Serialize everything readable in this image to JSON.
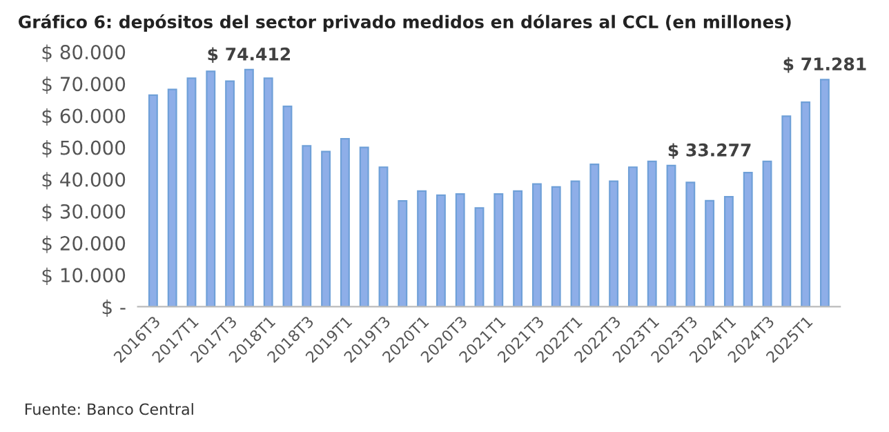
{
  "chart_data": {
    "type": "bar",
    "title": "Gráfico 6: depósitos del sector privado medidos en dólares al CCL (en millones)",
    "categories": [
      "2016T3",
      null,
      "2017T1",
      null,
      "2017T3",
      null,
      "2018T1",
      null,
      "2018T3",
      null,
      "2019T1",
      null,
      "2019T3",
      null,
      "2020T1",
      null,
      "2020T3",
      null,
      "2021T1",
      null,
      "2021T3",
      null,
      "2022T1",
      null,
      "2022T3",
      null,
      "2023T1",
      null,
      "2023T3",
      null,
      "2024T1",
      null,
      "2024T3",
      null,
      "2025T1",
      null
    ],
    "values": [
      66400,
      68200,
      71700,
      73900,
      70800,
      74412,
      71700,
      62900,
      50500,
      48700,
      52700,
      50000,
      43800,
      33200,
      36300,
      35000,
      35400,
      31000,
      35400,
      36300,
      38500,
      37600,
      39400,
      44700,
      39400,
      43800,
      45600,
      44300,
      39000,
      33277,
      34500,
      42100,
      45600,
      59800,
      64200,
      71281
    ],
    "value_labels": [
      null,
      null,
      null,
      null,
      null,
      "$ 74.412",
      null,
      null,
      null,
      null,
      null,
      null,
      null,
      null,
      null,
      null,
      null,
      null,
      null,
      null,
      null,
      null,
      null,
      null,
      null,
      null,
      null,
      null,
      null,
      "$ 33.277",
      null,
      null,
      null,
      null,
      null,
      "$ 71.281"
    ],
    "color": "#8eaee8",
    "ylim": [
      0,
      80000
    ],
    "yticks": [
      {
        "value": 0,
        "label": "$ -"
      },
      {
        "value": 10000,
        "label": "$ 10.000"
      },
      {
        "value": 20000,
        "label": "$ 20.000"
      },
      {
        "value": 30000,
        "label": "$ 30.000"
      },
      {
        "value": 40000,
        "label": "$ 40.000"
      },
      {
        "value": 50000,
        "label": "$ 50.000"
      },
      {
        "value": 60000,
        "label": "$ 60.000"
      },
      {
        "value": 70000,
        "label": "$ 70.000"
      },
      {
        "value": 80000,
        "label": "$ 80.000"
      }
    ],
    "grid": false,
    "annotations": [
      "Fuente: Banco Central"
    ]
  }
}
